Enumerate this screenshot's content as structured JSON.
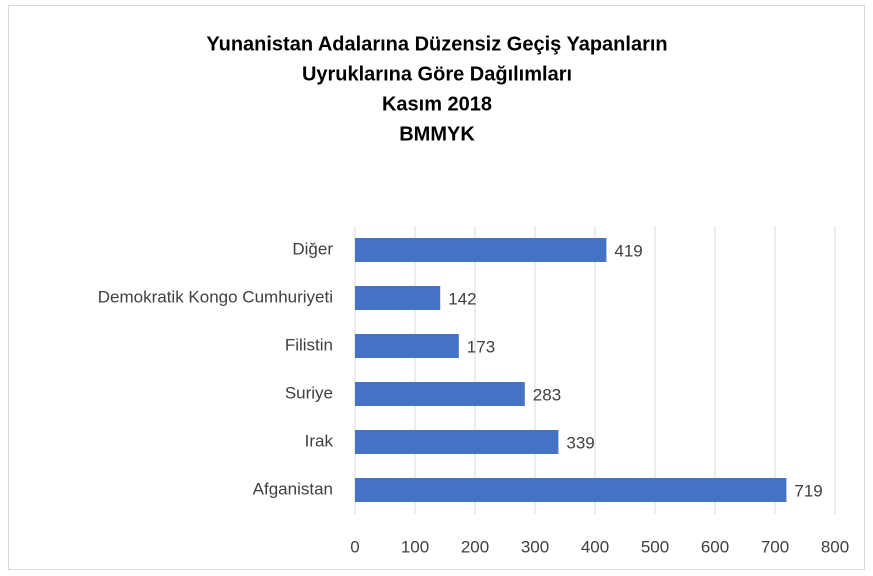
{
  "chart_data": {
    "type": "bar",
    "orientation": "horizontal",
    "title": [
      "Yunanistan Adalarına Düzensiz Geçiş Yapanların",
      "Uyruklarına Göre Dağılımları",
      "Kasım 2018",
      "BMMYK"
    ],
    "categories": [
      "Diğer",
      "Demokratik Kongo Cumhuriyeti",
      "Filistin",
      "Suriye",
      "Irak",
      "Afganistan"
    ],
    "values": [
      419,
      142,
      173,
      283,
      339,
      719
    ],
    "color": "#4472c4",
    "xlim": [
      0,
      800
    ],
    "xticks": [
      0,
      100,
      200,
      300,
      400,
      500,
      600,
      700,
      800
    ],
    "grid": true
  }
}
